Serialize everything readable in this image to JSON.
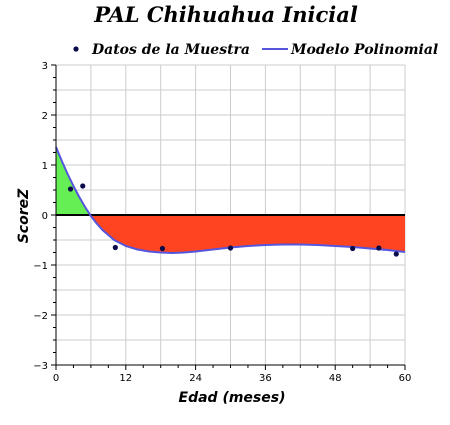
{
  "chart_data": {
    "type": "line",
    "title": "PAL Chihuahua Inicial",
    "xlabel": "Edad (meses)",
    "ylabel": "ScoreZ",
    "xlim": [
      0,
      60
    ],
    "ylim": [
      -3,
      3
    ],
    "x_ticks": [
      0,
      12,
      24,
      36,
      48,
      60
    ],
    "y_ticks": [
      -3,
      -2,
      -1,
      0,
      1,
      2,
      3
    ],
    "grid": true,
    "legend_position": "top",
    "series": [
      {
        "name": "Datos de la Muestra",
        "type": "scatter",
        "color": "#0b0b4a",
        "points": [
          {
            "x": 2.5,
            "y": 0.52
          },
          {
            "x": 4.6,
            "y": 0.58
          },
          {
            "x": 10.2,
            "y": -0.65
          },
          {
            "x": 18.3,
            "y": -0.67
          },
          {
            "x": 30.0,
            "y": -0.66
          },
          {
            "x": 51.0,
            "y": -0.67
          },
          {
            "x": 55.5,
            "y": -0.66
          },
          {
            "x": 58.5,
            "y": -0.78
          }
        ]
      },
      {
        "name": "Modelo Polinomial",
        "type": "line",
        "color": "#5555dd",
        "points": [
          {
            "x": 0,
            "y": 1.36
          },
          {
            "x": 1,
            "y": 1.08
          },
          {
            "x": 2,
            "y": 0.82
          },
          {
            "x": 3,
            "y": 0.58
          },
          {
            "x": 4,
            "y": 0.36
          },
          {
            "x": 5,
            "y": 0.16
          },
          {
            "x": 6,
            "y": -0.02
          },
          {
            "x": 7,
            "y": -0.17
          },
          {
            "x": 8,
            "y": -0.3
          },
          {
            "x": 10,
            "y": -0.5
          },
          {
            "x": 12,
            "y": -0.62
          },
          {
            "x": 14,
            "y": -0.69
          },
          {
            "x": 16,
            "y": -0.73
          },
          {
            "x": 18,
            "y": -0.75
          },
          {
            "x": 20,
            "y": -0.76
          },
          {
            "x": 22,
            "y": -0.75
          },
          {
            "x": 24,
            "y": -0.73
          },
          {
            "x": 27,
            "y": -0.69
          },
          {
            "x": 30,
            "y": -0.65
          },
          {
            "x": 33,
            "y": -0.62
          },
          {
            "x": 36,
            "y": -0.6
          },
          {
            "x": 39,
            "y": -0.59
          },
          {
            "x": 42,
            "y": -0.59
          },
          {
            "x": 45,
            "y": -0.6
          },
          {
            "x": 48,
            "y": -0.62
          },
          {
            "x": 51,
            "y": -0.64
          },
          {
            "x": 54,
            "y": -0.67
          },
          {
            "x": 57,
            "y": -0.7
          },
          {
            "x": 60,
            "y": -0.74
          }
        ]
      }
    ],
    "fill_colors": {
      "above_zero": "#66ee55",
      "below_zero": "#ff4422"
    }
  }
}
